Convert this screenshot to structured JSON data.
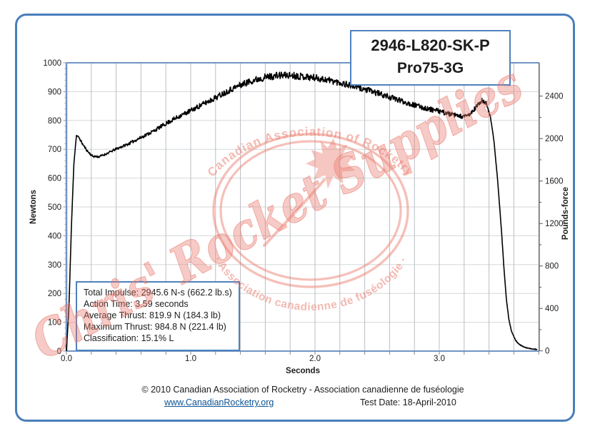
{
  "title_box": {
    "line1": "2946-L820-SK-P",
    "line2": "Pro75-3G"
  },
  "info_box": {
    "lines": [
      "Total Impulse: 2945.6 N-s (662.2 lb.s)",
      "Action Time: 3.59 seconds",
      "Average Thrust: 819.9 N (184.3 lb)",
      "Maximum Thrust: 984.8 N (221.4 lb)",
      "Classification: 15.1% L"
    ]
  },
  "watermark": {
    "dealer_text": "Chris' Rocket Supplies",
    "stamp_top_text": "Canadian Association of Rocketry",
    "stamp_bottom_text": "· Association canadienne de fuséologie ·",
    "color": "#e9796c"
  },
  "footer": {
    "copyright": "© 2010 Canadian Association of Rocketry - Association canadienne de fuséologie",
    "link": "www.CanadianRocketry.org",
    "test_date": "Test  Date: 18-April-2010"
  },
  "chart_data": {
    "type": "line",
    "title": "",
    "xlabel": "Seconds",
    "ylabel_left": "Newtons",
    "ylabel_right": "Pounds-force",
    "x_range": [
      0,
      3.8
    ],
    "x_major_tick_step": 0.2,
    "x_labeled_ticks": [
      0,
      1,
      2,
      3
    ],
    "x_label_format": [
      "0.0",
      "1.0",
      "2.0",
      "3.0"
    ],
    "y_left_range": [
      0,
      1000
    ],
    "y_left_major_step": 100,
    "y_left_minor_step": 20,
    "y_right_ticks": [
      0,
      400,
      800,
      1200,
      1600,
      2000,
      2400
    ],
    "y_right_minor_step": 200,
    "grid": true,
    "legend": "none",
    "axis_color_primary": "#7195c6",
    "axis_color_secondary": "#595959",
    "grid_color_v": "#b9bec4",
    "grid_color_h": "#d4d7da",
    "series": [
      {
        "name": "thrust-newtons",
        "color": "#000000",
        "noise_band": "amplitude grows with thrust, ~±12 N at peak",
        "points": [
          [
            0.0,
            0
          ],
          [
            0.02,
            150
          ],
          [
            0.04,
            430
          ],
          [
            0.06,
            650
          ],
          [
            0.08,
            748
          ],
          [
            0.1,
            742
          ],
          [
            0.13,
            718
          ],
          [
            0.17,
            693
          ],
          [
            0.21,
            676
          ],
          [
            0.26,
            674
          ],
          [
            0.32,
            684
          ],
          [
            0.4,
            701
          ],
          [
            0.5,
            719
          ],
          [
            0.6,
            741
          ],
          [
            0.7,
            763
          ],
          [
            0.8,
            789
          ],
          [
            0.9,
            813
          ],
          [
            1.0,
            834
          ],
          [
            1.1,
            857
          ],
          [
            1.2,
            879
          ],
          [
            1.3,
            903
          ],
          [
            1.4,
            923
          ],
          [
            1.5,
            939
          ],
          [
            1.6,
            950
          ],
          [
            1.7,
            956
          ],
          [
            1.8,
            957
          ],
          [
            1.9,
            953
          ],
          [
            2.0,
            948
          ],
          [
            2.1,
            941
          ],
          [
            2.2,
            931
          ],
          [
            2.3,
            920
          ],
          [
            2.4,
            908
          ],
          [
            2.5,
            895
          ],
          [
            2.6,
            881
          ],
          [
            2.7,
            867
          ],
          [
            2.8,
            853
          ],
          [
            2.9,
            841
          ],
          [
            3.0,
            832
          ],
          [
            3.1,
            820
          ],
          [
            3.2,
            812
          ],
          [
            3.25,
            822
          ],
          [
            3.3,
            848
          ],
          [
            3.34,
            868
          ],
          [
            3.38,
            858
          ],
          [
            3.41,
            818
          ],
          [
            3.44,
            728
          ],
          [
            3.47,
            590
          ],
          [
            3.5,
            420
          ],
          [
            3.52,
            290
          ],
          [
            3.54,
            180
          ],
          [
            3.56,
            110
          ],
          [
            3.58,
            70
          ],
          [
            3.61,
            40
          ],
          [
            3.64,
            24
          ],
          [
            3.68,
            14
          ],
          [
            3.72,
            9
          ],
          [
            3.76,
            7
          ],
          [
            3.79,
            6
          ]
        ]
      }
    ],
    "stats": {
      "total_impulse_ns": 2945.6,
      "total_impulse_lbs": 662.2,
      "action_time_s": 3.59,
      "average_thrust_n": 819.9,
      "average_thrust_lb": 184.3,
      "maximum_thrust_n": 984.8,
      "maximum_thrust_lb": 221.4,
      "classification": "15.1% L"
    }
  }
}
